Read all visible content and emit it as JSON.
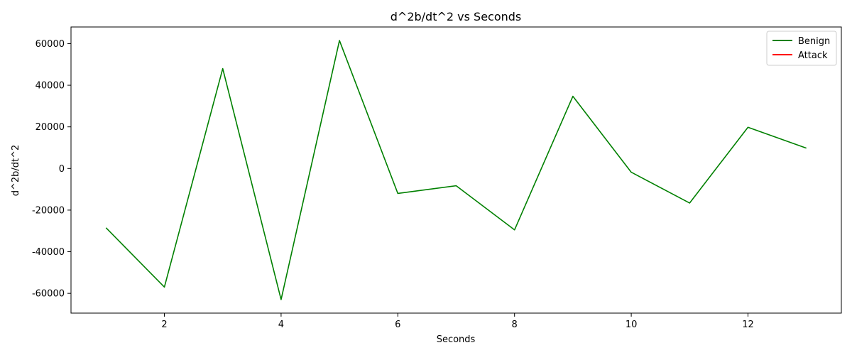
{
  "chart_data": {
    "type": "line",
    "title": "d^2b/dt^2 vs Seconds",
    "xlabel": "Seconds",
    "ylabel": "d^2b/dt^2",
    "xlim": [
      0.4,
      13.6
    ],
    "ylim": [
      -69500,
      68000
    ],
    "xticks": [
      2,
      4,
      6,
      8,
      10,
      12
    ],
    "yticks": [
      -60000,
      -40000,
      -20000,
      0,
      20000,
      40000,
      60000
    ],
    "grid": false,
    "legend_position": "top-right",
    "series": [
      {
        "name": "Benign",
        "color": "#008000",
        "x": [
          1,
          2,
          3,
          4,
          5,
          6,
          7,
          8,
          9,
          10,
          11,
          12,
          13
        ],
        "y": [
          -28500,
          -57000,
          48000,
          -63000,
          61500,
          -12000,
          -8300,
          -29500,
          34700,
          -1800,
          -16600,
          19800,
          9800
        ]
      },
      {
        "name": "Attack",
        "color": "#ff0000",
        "x": [],
        "y": []
      }
    ]
  }
}
